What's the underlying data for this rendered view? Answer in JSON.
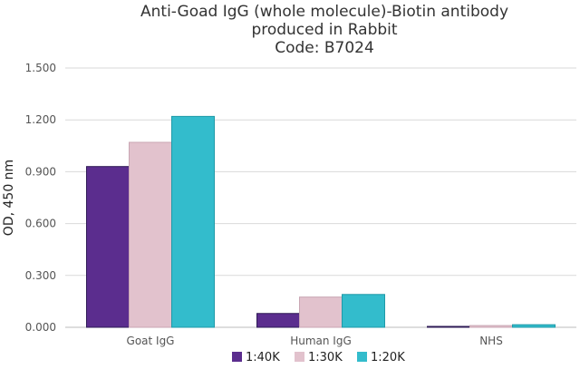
{
  "chart_data": {
    "type": "bar",
    "title": [
      "Anti-Goad IgG (whole molecule)-Biotin antibody",
      "produced in Rabbit",
      "Code: B7024"
    ],
    "xlabel": "",
    "ylabel": "OD, 450 nm",
    "categories": [
      "Goat IgG",
      "Human IgG",
      "NHS"
    ],
    "ylim": [
      0,
      1.5
    ],
    "yticks": [
      "0.000",
      "0.300",
      "0.600",
      "0.900",
      "1.200",
      "1.500"
    ],
    "grid": true,
    "legend_position": "bottom",
    "series": [
      {
        "name": "1:40K",
        "color": "#5b2d8e",
        "values": [
          0.93,
          0.08,
          0.005
        ]
      },
      {
        "name": "1:30K",
        "color": "#e2c2cd",
        "values": [
          1.07,
          0.175,
          0.01
        ]
      },
      {
        "name": "1:20K",
        "color": "#33bccc",
        "values": [
          1.22,
          0.19,
          0.015
        ]
      }
    ]
  }
}
